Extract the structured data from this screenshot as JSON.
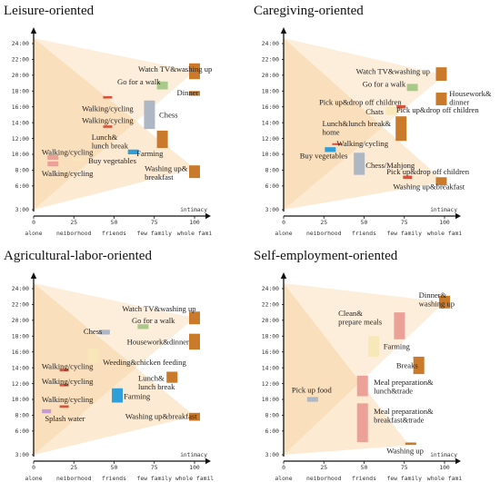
{
  "colors": {
    "fan": "#f6c98c",
    "orange": "#c97a2a",
    "red": "#d9533c",
    "green": "#a9c98b",
    "gray": "#aeb7c4",
    "yellow": "#f8e7b8",
    "blue": "#2f9fd8",
    "purple": "#c39ad4",
    "salmon": "#eba197",
    "axis": "#111111"
  },
  "chart_data": [
    {
      "type": "scatter",
      "title": "Leisure-oriented",
      "xlabel": "intimacy",
      "x_ticks": [
        "alone",
        "neiborhood",
        "friends",
        "few family",
        "whole fami"
      ],
      "x_tick_values": [
        0,
        25,
        50,
        75,
        100
      ],
      "y_ticks": [
        "3:00",
        "6:00",
        "8:00",
        "10:00",
        "12:00",
        "14:00",
        "16:00",
        "18:00",
        "20:00",
        "22:00",
        "24:00"
      ],
      "ylim": [
        2,
        25
      ],
      "fans": [
        {
          "x": 100,
          "y": 20.5
        },
        {
          "x": 100,
          "y": 8.2
        }
      ],
      "marks": [
        {
          "label": "Watch TV&washing up",
          "x": 100,
          "y": 20.5,
          "y_top": 21.5,
          "y_bottom": 19.5,
          "color": "orange",
          "lx": 65,
          "ly": 20.8
        },
        {
          "label": "Go for a walk",
          "x": 80,
          "y": 18.7,
          "y_top": 19.2,
          "y_bottom": 18.2,
          "color": "green",
          "lx": 52,
          "ly": 19.2
        },
        {
          "label": "Dinner",
          "x": 100,
          "y": 17.7,
          "y_top": 18.0,
          "y_bottom": 17.4,
          "color": "orange",
          "lx": 89,
          "ly": 17.8
        },
        {
          "label": "",
          "x": 46,
          "y": 17.2,
          "y_top": 17.35,
          "y_bottom": 17.05,
          "color": "red"
        },
        {
          "label": "Chess",
          "x": 72,
          "y": 14.8,
          "y_top": 16.8,
          "y_bottom": 13.2,
          "color": "gray",
          "lx": 78,
          "ly": 15.0
        },
        {
          "label": "Walking/cycling",
          "x": 46,
          "y": 15.2,
          "lx": 30,
          "ly": 15.8
        },
        {
          "label": "",
          "x": 46,
          "y": 13.5,
          "y_top": 13.65,
          "y_bottom": 13.35,
          "color": "red"
        },
        {
          "label": "Walking/cycling",
          "x": 46,
          "y": 14.0,
          "lx": 30,
          "ly": 14.3
        },
        {
          "label": "Lunch& lunch break",
          "x": 80,
          "y": 11.9,
          "y_top": 13.0,
          "y_bottom": 10.8,
          "color": "orange",
          "lx": 36,
          "ly": 12.2
        },
        {
          "label": "Walking/cycling",
          "x": 12,
          "y": 9.3,
          "lx": 5,
          "ly": 10.3
        },
        {
          "label": "Farming",
          "x": 62,
          "y": 10.3,
          "y_top": 10.6,
          "y_bottom": 10.0,
          "color": "blue",
          "lx": 64,
          "ly": 10.1
        },
        {
          "label": "",
          "x": 12,
          "y": 9.6,
          "y_top": 9.9,
          "y_bottom": 9.3,
          "color": "salmon"
        },
        {
          "label": "Buy vegetables",
          "x": 27,
          "y": 9.3,
          "y_top": 9.45,
          "y_bottom": 9.15,
          "color": "yellow",
          "lx": 34,
          "ly": 9.2
        },
        {
          "label": "",
          "x": 12,
          "y": 8.8,
          "y_top": 9.1,
          "y_bottom": 8.5,
          "color": "salmon"
        },
        {
          "label": "Walking/cycling",
          "x": 12,
          "y": 8.2,
          "lx": 5,
          "ly": 7.6
        },
        {
          "label": "Washing up& breakfast",
          "x": 100,
          "y": 7.8,
          "y_top": 8.6,
          "y_bottom": 7.0,
          "color": "orange",
          "lx": 69,
          "ly": 8.2
        }
      ]
    },
    {
      "type": "scatter",
      "title": "Caregiving-oriented",
      "xlabel": "intimacy",
      "x_ticks": [
        "alone",
        "neiborhood",
        "friends",
        "few family",
        "whole fami"
      ],
      "x_tick_values": [
        0,
        25,
        50,
        75,
        100
      ],
      "y_ticks": [
        "3:00",
        "6:00",
        "8:00",
        "10:00",
        "12:00",
        "14:00",
        "16:00",
        "18:00",
        "20:00",
        "22:00",
        "24:00"
      ],
      "ylim": [
        2,
        25
      ],
      "fans": [
        {
          "x": 100,
          "y": 20.0
        },
        {
          "x": 100,
          "y": 6.5
        }
      ],
      "marks": [
        {
          "label": "Watch TV&washing up",
          "x": 98,
          "y": 20.3,
          "y_top": 21.0,
          "y_bottom": 19.3,
          "color": "orange",
          "lx": 45,
          "ly": 20.5
        },
        {
          "label": "Go for a walk",
          "x": 80,
          "y": 18.4,
          "y_top": 18.9,
          "y_bottom": 18.0,
          "color": "green",
          "lx": 49,
          "ly": 18.9
        },
        {
          "label": "Housework& dinner",
          "x": 98,
          "y": 17.0,
          "y_top": 17.8,
          "y_bottom": 16.2,
          "color": "orange",
          "lx": 103,
          "ly": 17.7
        },
        {
          "label": "Pick up&drop off children",
          "x": 73,
          "y": 16.0,
          "y_top": 16.2,
          "y_bottom": 15.8,
          "color": "red",
          "lx": 22,
          "ly": 16.6
        },
        {
          "label": "Chats",
          "x": 67,
          "y": 15.4,
          "y_top": 16.0,
          "y_bottom": 15.0,
          "color": "yellow",
          "lx": 51,
          "ly": 15.4
        },
        {
          "label": "Pick up&drop off children",
          "x": 73,
          "y": 15.0,
          "lx": 70,
          "ly": 15.6
        },
        {
          "label": "Lunch&lunch break& home",
          "x": 73,
          "y": 13.2,
          "y_top": 14.8,
          "y_bottom": 11.7,
          "color": "orange",
          "lx": 24,
          "ly": 13.9
        },
        {
          "label": "Walking/cycling",
          "x": 33,
          "y": 11.3,
          "y_top": 11.4,
          "y_bottom": 11.2,
          "color": "red",
          "lx": 33,
          "ly": 11.4
        },
        {
          "label": "Buy vegetables",
          "x": 29,
          "y": 10.6,
          "y_top": 10.9,
          "y_bottom": 10.3,
          "color": "blue",
          "lx": 10,
          "ly": 9.8
        },
        {
          "label": "Chess/Mahjong",
          "x": 47,
          "y": 8.8,
          "y_top": 10.2,
          "y_bottom": 7.4,
          "color": "gray",
          "lx": 51,
          "ly": 8.6
        },
        {
          "label": "Pick up&drop off children",
          "x": 77,
          "y": 7.1,
          "y_top": 7.3,
          "y_bottom": 6.9,
          "color": "red",
          "lx": 64,
          "ly": 7.8
        },
        {
          "label": "Washing up&breakfast",
          "x": 98,
          "y": 6.6,
          "y_top": 7.1,
          "y_bottom": 6.1,
          "color": "orange",
          "lx": 68,
          "ly": 5.9
        }
      ]
    },
    {
      "type": "scatter",
      "title": "Agricultural-labor-oriented",
      "xlabel": "intimacy",
      "x_ticks": [
        "alone",
        "neiborhood",
        "friends",
        "few family",
        "whole famil"
      ],
      "x_tick_values": [
        0,
        25,
        50,
        75,
        100
      ],
      "y_ticks": [
        "3:00",
        "6:00",
        "8:00",
        "10:00",
        "12:00",
        "14:00",
        "16:00",
        "18:00",
        "20:00",
        "22:00",
        "24:00"
      ],
      "ylim": [
        2,
        25
      ],
      "fans": [
        {
          "x": 100,
          "y": 20.3
        },
        {
          "x": 100,
          "y": 7.9
        }
      ],
      "marks": [
        {
          "label": "Watch TV&washing up",
          "x": 100,
          "y": 20.3,
          "y_top": 21.1,
          "y_bottom": 19.5,
          "color": "orange",
          "lx": 55,
          "ly": 21.5
        },
        {
          "label": "Go for a walk",
          "x": 68,
          "y": 19.2,
          "y_top": 19.5,
          "y_bottom": 18.9,
          "color": "green",
          "lx": 61,
          "ly": 20.0
        },
        {
          "label": "Chess",
          "x": 44,
          "y": 18.5,
          "y_top": 18.8,
          "y_bottom": 18.2,
          "color": "gray",
          "lx": 31,
          "ly": 18.6
        },
        {
          "label": "Housework&dinner",
          "x": 100,
          "y": 17.3,
          "y_top": 18.3,
          "y_bottom": 16.3,
          "color": "orange",
          "lx": 58,
          "ly": 17.3
        },
        {
          "label": "",
          "x": 37,
          "y": 15.5,
          "y_top": 16.4,
          "y_bottom": 14.6,
          "color": "yellow"
        },
        {
          "label": "Walking/cycling",
          "x": 19,
          "y": 13.7,
          "y_top": 13.85,
          "y_bottom": 13.55,
          "color": "red",
          "lx": 5,
          "ly": 14.2
        },
        {
          "label": "Weeding&chicken feeding",
          "x": 37,
          "y": 14.6,
          "lx": 43,
          "ly": 14.7
        },
        {
          "label": "Lunch& lunch break",
          "x": 86,
          "y": 12.8,
          "y_top": 13.5,
          "y_bottom": 12.1,
          "color": "orange",
          "lx": 65,
          "ly": 12.7
        },
        {
          "label": "Walking/cycling",
          "x": 19,
          "y": 11.8,
          "y_top": 11.95,
          "y_bottom": 11.65,
          "color": "red",
          "lx": 5,
          "ly": 12.3
        },
        {
          "label": "Farming",
          "x": 52,
          "y": 10.5,
          "y_top": 11.4,
          "y_bottom": 9.6,
          "color": "blue",
          "lx": 56,
          "ly": 10.4
        },
        {
          "label": "Walking/cycling",
          "x": 19,
          "y": 9.1,
          "y_top": 9.25,
          "y_bottom": 8.95,
          "color": "red",
          "lx": 5,
          "ly": 10.0
        },
        {
          "label": "Splash water",
          "x": 8,
          "y": 8.5,
          "y_top": 8.75,
          "y_bottom": 8.25,
          "color": "purple",
          "lx": 7,
          "ly": 7.6
        },
        {
          "label": "Washing up&breakfast",
          "x": 100,
          "y": 7.8,
          "y_top": 8.3,
          "y_bottom": 7.3,
          "color": "orange",
          "lx": 57,
          "ly": 7.9
        }
      ]
    },
    {
      "type": "scatter",
      "title": "Self-employment-oriented",
      "xlabel": "intimacy",
      "x_ticks": [
        "alone",
        "neiborhood",
        "friends",
        "few family",
        "whole fami"
      ],
      "x_tick_values": [
        0,
        25,
        50,
        75,
        100
      ],
      "y_ticks": [
        "3:00",
        "6:00",
        "8:00",
        "10:00",
        "12:00",
        "14:00",
        "16:00",
        "18:00",
        "20:00",
        "22:00",
        "24:00"
      ],
      "ylim": [
        2,
        25
      ],
      "fans": [
        {
          "x": 100,
          "y": 22.3
        },
        {
          "x": 78,
          "y": 4.2
        }
      ],
      "marks": [
        {
          "label": "Dinner& washing up",
          "x": 100,
          "y": 22.3,
          "y_top": 23.1,
          "y_bottom": 21.5,
          "color": "orange",
          "lx": 84,
          "ly": 23.2
        },
        {
          "label": "Clean& prepare meals",
          "x": 72,
          "y": 19.3,
          "y_top": 21.0,
          "y_bottom": 17.6,
          "color": "salmon",
          "lx": 34,
          "ly": 20.9
        },
        {
          "label": "Farming",
          "x": 56,
          "y": 16.7,
          "y_top": 18.0,
          "y_bottom": 15.4,
          "color": "yellow",
          "lx": 62,
          "ly": 16.7
        },
        {
          "label": "Breaks",
          "x": 84,
          "y": 14.3,
          "y_top": 15.4,
          "y_bottom": 13.2,
          "color": "orange",
          "lx": 70,
          "ly": 14.3
        },
        {
          "label": "Meal preparation& lunch&trade",
          "x": 49,
          "y": 11.7,
          "y_top": 13.0,
          "y_bottom": 10.4,
          "color": "salmon",
          "lx": 56,
          "ly": 12.2
        },
        {
          "label": "Pick up food",
          "x": 18,
          "y": 10.0,
          "y_top": 10.3,
          "y_bottom": 9.7,
          "color": "gray",
          "lx": 5,
          "ly": 11.2
        },
        {
          "label": "Meal preparation& breakfast&trade",
          "x": 49,
          "y": 7.0,
          "y_top": 9.5,
          "y_bottom": 4.6,
          "color": "salmon",
          "lx": 56,
          "ly": 8.5
        },
        {
          "label": "Washing up",
          "x": 79,
          "y": 4.4,
          "y_top": 4.55,
          "y_bottom": 4.25,
          "color": "orange",
          "lx": 64,
          "ly": 3.5
        }
      ]
    }
  ]
}
